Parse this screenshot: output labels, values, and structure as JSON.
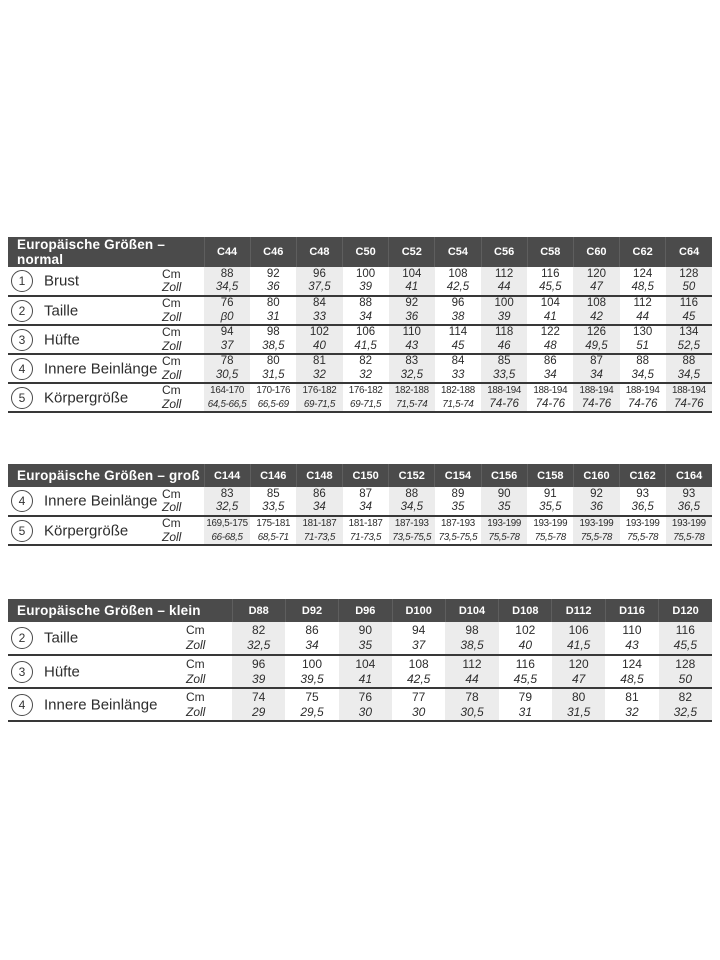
{
  "units": {
    "cm": "Cm",
    "zoll": "Zoll"
  },
  "colors": {
    "header_bg": "#4b4b4b",
    "shade": "#ececec",
    "line": "#383838",
    "text": "#2d2d2d"
  },
  "tables": [
    {
      "title": "Europäische Größen – normal",
      "columns": [
        "C44",
        "C46",
        "C48",
        "C50",
        "C52",
        "C54",
        "C56",
        "C58",
        "C60",
        "C62",
        "C64"
      ],
      "rows": [
        {
          "num": "1",
          "label": "Brust",
          "cm": [
            "88",
            "92",
            "96",
            "100",
            "104",
            "108",
            "112",
            "116",
            "120",
            "124",
            "128"
          ],
          "zoll": [
            "34,5",
            "36",
            "37,5",
            "39",
            "41",
            "42,5",
            "44",
            "45,5",
            "47",
            "48,5",
            "50"
          ]
        },
        {
          "num": "2",
          "label": "Taille",
          "cm": [
            "76",
            "80",
            "84",
            "88",
            "92",
            "96",
            "100",
            "104",
            "108",
            "112",
            "116"
          ],
          "zoll": [
            "β0",
            "31",
            "33",
            "34",
            "36",
            "38",
            "39",
            "41",
            "42",
            "44",
            "45"
          ]
        },
        {
          "num": "3",
          "label": "Hüfte",
          "cm": [
            "94",
            "98",
            "102",
            "106",
            "110",
            "114",
            "118",
            "122",
            "126",
            "130",
            "134"
          ],
          "zoll": [
            "37",
            "38,5",
            "40",
            "41,5",
            "43",
            "45",
            "46",
            "48",
            "49,5",
            "51",
            "52,5"
          ]
        },
        {
          "num": "4",
          "label": "Innere Beinlänge",
          "cm": [
            "78",
            "80",
            "81",
            "82",
            "83",
            "84",
            "85",
            "86",
            "87",
            "88",
            "88"
          ],
          "zoll": [
            "30,5",
            "31,5",
            "32",
            "32",
            "32,5",
            "33",
            "33,5",
            "34",
            "34",
            "34,5",
            "34,5"
          ]
        },
        {
          "num": "5",
          "label": "Körpergröße",
          "cm": [
            "164-170",
            "170-176",
            "176-182",
            "176-182",
            "182-188",
            "182-188",
            "188-194",
            "188-194",
            "188-194",
            "188-194",
            "188-194"
          ],
          "zoll": [
            "64,5-66,5",
            "66,5-69",
            "69-71,5",
            "69-71,5",
            "71,5-74",
            "71,5-74",
            "74-76",
            "74-76",
            "74-76",
            "74-76",
            "74-76"
          ]
        }
      ]
    },
    {
      "title": "Europäische Größen – groß",
      "columns": [
        "C144",
        "C146",
        "C148",
        "C150",
        "C152",
        "C154",
        "C156",
        "C158",
        "C160",
        "C162",
        "C164"
      ],
      "rows": [
        {
          "num": "4",
          "label": "Innere Beinlänge",
          "cm": [
            "83",
            "85",
            "86",
            "87",
            "88",
            "89",
            "90",
            "91",
            "92",
            "93",
            "93"
          ],
          "zoll": [
            "32,5",
            "33,5",
            "34",
            "34",
            "34,5",
            "35",
            "35",
            "35,5",
            "36",
            "36,5",
            "36,5"
          ]
        },
        {
          "num": "5",
          "label": "Körpergröße",
          "cm": [
            "169,5-175",
            "175-181",
            "181-187",
            "181-187",
            "187-193",
            "187-193",
            "193-199",
            "193-199",
            "193-199",
            "193-199",
            "193-199"
          ],
          "zoll": [
            "66-68,5",
            "68,5-71",
            "71-73,5",
            "71-73,5",
            "73,5-75,5",
            "73,5-75,5",
            "75,5-78",
            "75,5-78",
            "75,5-78",
            "75,5-78",
            "75,5-78"
          ]
        }
      ]
    },
    {
      "title": "Europäische Größen – klein",
      "columns": [
        "D88",
        "D92",
        "D96",
        "D100",
        "D104",
        "D108",
        "D112",
        "D116",
        "D120"
      ],
      "rows": [
        {
          "num": "2",
          "label": "Taille",
          "cm": [
            "82",
            "86",
            "90",
            "94",
            "98",
            "102",
            "106",
            "110",
            "116"
          ],
          "zoll": [
            "32,5",
            "34",
            "35",
            "37",
            "38,5",
            "40",
            "41,5",
            "43",
            "45,5"
          ]
        },
        {
          "num": "3",
          "label": "Hüfte",
          "cm": [
            "96",
            "100",
            "104",
            "108",
            "112",
            "116",
            "120",
            "124",
            "128"
          ],
          "zoll": [
            "39",
            "39,5",
            "41",
            "42,5",
            "44",
            "45,5",
            "47",
            "48,5",
            "50"
          ]
        },
        {
          "num": "4",
          "label": "Innere Beinlänge",
          "cm": [
            "74",
            "75",
            "76",
            "77",
            "78",
            "79",
            "80",
            "81",
            "82"
          ],
          "zoll": [
            "29",
            "29,5",
            "30",
            "30",
            "30,5",
            "31",
            "31,5",
            "32",
            "32,5"
          ]
        }
      ]
    }
  ]
}
